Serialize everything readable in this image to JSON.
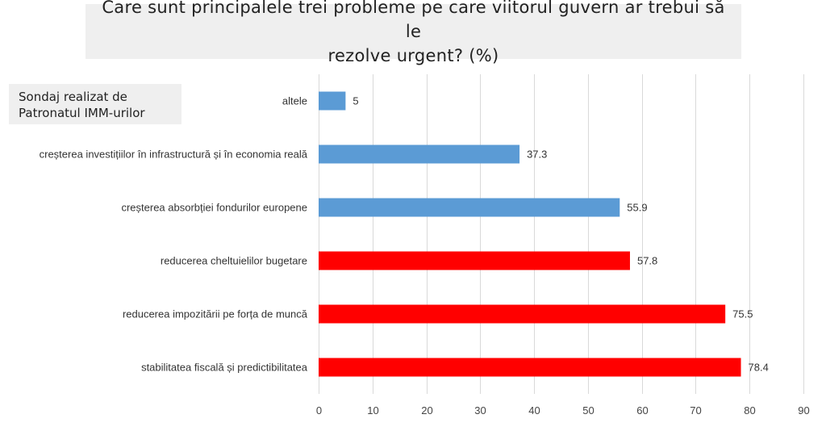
{
  "source_note": {
    "line1": "Sondaj realizat de",
    "line2": "Patronatul IMM-urilor"
  },
  "chart_data": {
    "type": "bar",
    "orientation": "horizontal",
    "title_line1": "Care sunt principalele trei probleme pe care viitorul guvern ar trebui să le",
    "title_line2": "rezolve urgent? (%)",
    "categories": [
      "altele",
      "creșterea investițiilor în infrastructură și în economia reală",
      "creșterea absorbției fondurilor europene",
      "reducerea cheltuielilor bugetare",
      "reducerea impozitării pe forța de muncă",
      "stabilitatea fiscală și predictibilitatea"
    ],
    "values": [
      5,
      37.3,
      55.9,
      57.8,
      75.5,
      78.4
    ],
    "value_labels": [
      "5",
      "37.3",
      "55.9",
      "57.8",
      "75.5",
      "78.4"
    ],
    "bar_colors": [
      "#5b9bd5",
      "#5b9bd5",
      "#5b9bd5",
      "#ff0000",
      "#ff0000",
      "#ff0000"
    ],
    "xlim": [
      0,
      90
    ],
    "xticks": [
      "0",
      "10",
      "20",
      "30",
      "40",
      "50",
      "60",
      "70",
      "80",
      "90"
    ],
    "grid": true,
    "legend": false
  }
}
